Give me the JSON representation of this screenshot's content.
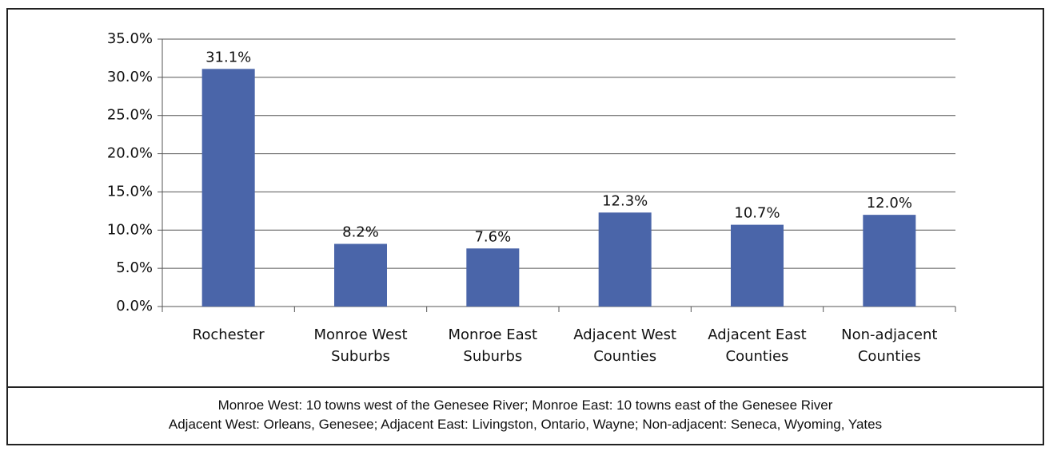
{
  "chart_data": {
    "type": "bar",
    "categories": [
      "Rochester",
      "Monroe West\nSuburbs",
      "Monroe East\nSuburbs",
      "Adjacent West\nCounties",
      "Adjacent East\nCounties",
      "Non-adjacent\nCounties"
    ],
    "values": [
      31.1,
      8.2,
      7.6,
      12.3,
      10.7,
      12.0
    ],
    "value_labels": [
      "31.1%",
      "8.2%",
      "7.6%",
      "12.3%",
      "10.7%",
      "12.0%"
    ],
    "color": "#4a65a9",
    "ylim": [
      0,
      35
    ],
    "yticks": [
      {
        "value": 0,
        "label": "0.0%"
      },
      {
        "value": 5,
        "label": "5.0%"
      },
      {
        "value": 10,
        "label": "10.0%"
      },
      {
        "value": 15,
        "label": "15.0%"
      },
      {
        "value": 20,
        "label": "20.0%"
      },
      {
        "value": 25,
        "label": "25.0%"
      },
      {
        "value": 30,
        "label": "30.0%"
      },
      {
        "value": 35,
        "label": "35.0%"
      }
    ],
    "grid": true
  },
  "caption": [
    "Monroe West: 10 towns west of the Genesee River; Monroe East: 10 towns east of the Genesee River",
    "Adjacent West: Orleans, Genesee; Adjacent East: Livingston, Ontario, Wayne; Non-adjacent: Seneca, Wyoming, Yates"
  ]
}
